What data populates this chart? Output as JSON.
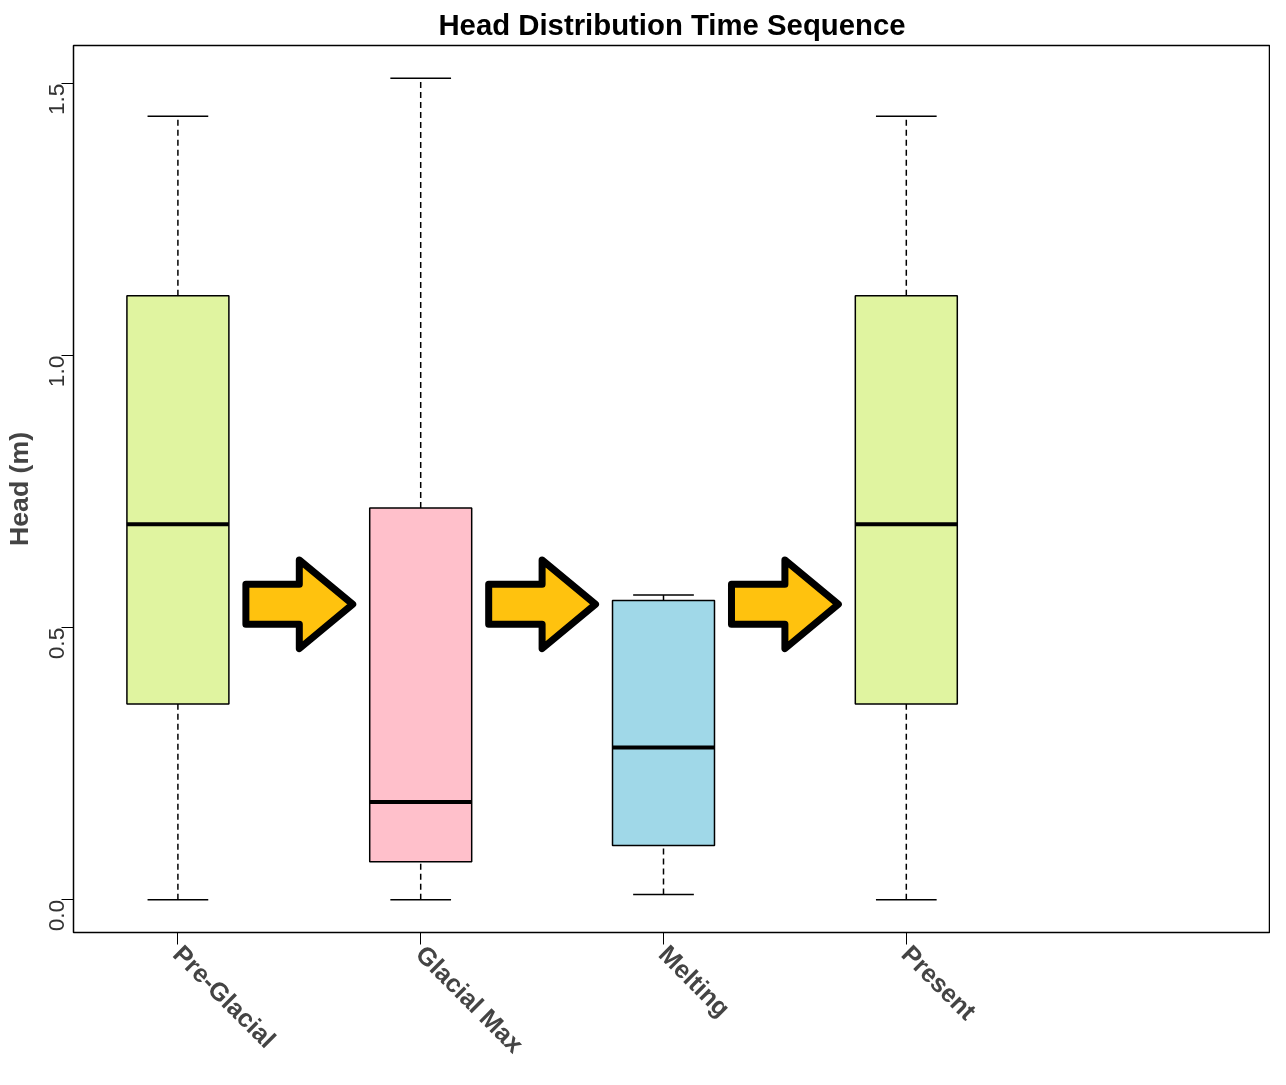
{
  "chart_data": {
    "type": "box",
    "title": "Head Distribution Time Sequence",
    "ylabel": "Head (m)",
    "categories": [
      "Pre-Glacial",
      "Glacial Max",
      "Melting",
      "Present"
    ],
    "colors": [
      "#e0f4a0",
      "#ffc0cb",
      "#a0d8e8",
      "#e0f4a0"
    ],
    "boxes": [
      {
        "low": 0.0,
        "q1": 0.36,
        "median": 0.69,
        "q3": 1.11,
        "high": 1.44
      },
      {
        "low": 0.0,
        "q1": 0.07,
        "median": 0.18,
        "q3": 0.72,
        "high": 1.51
      },
      {
        "low": 0.01,
        "q1": 0.1,
        "median": 0.28,
        "q3": 0.55,
        "high": 0.56
      },
      {
        "low": 0.0,
        "q1": 0.36,
        "median": 0.69,
        "q3": 1.11,
        "high": 1.44
      }
    ],
    "ylim": [
      -0.06,
      1.57
    ],
    "yticks": [
      {
        "value": 0,
        "label": "0.0"
      },
      0.5,
      {
        "value": 1,
        "label": "1.0"
      },
      1.5
    ],
    "grid": false
  }
}
